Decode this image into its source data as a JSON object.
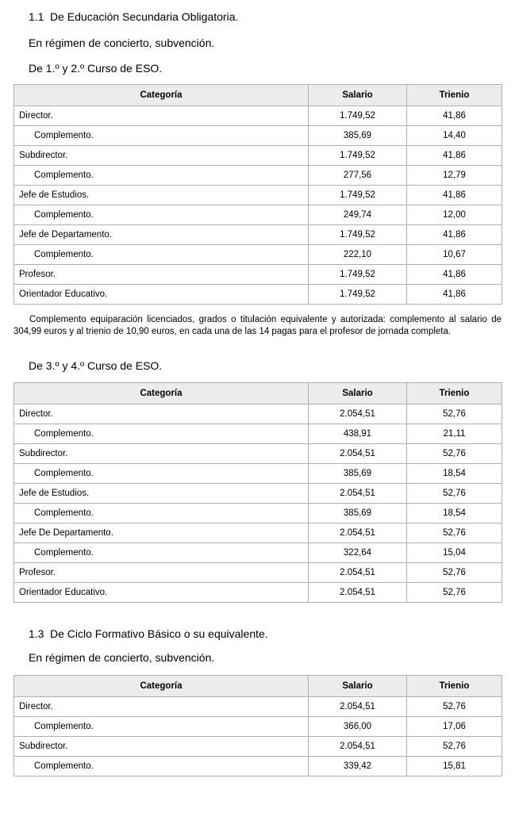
{
  "colors": {
    "page_bg": "#ffffff",
    "text": "#000000",
    "table_header_bg": "#ececec",
    "table_border": "#b0b0b0"
  },
  "section_1_1": {
    "number": "1.1",
    "title": "De Educación Secundaria Obligatoria.",
    "regime": "En régimen de concierto, subvención.",
    "course_1_2": "De 1.º y 2.º Curso de ESO.",
    "note": "Complemento equiparación licenciados, grados o titulación equivalente y autorizada: complemento al salario de 304,99 euros y al trienio de 10,90 euros, en cada una de las 14 pagas para el profesor de jornada completa.",
    "course_3_4": "De 3.º y 4.º Curso de ESO."
  },
  "section_1_3": {
    "number": "1.3",
    "title": "De Ciclo Formativo Básico o su equivalente.",
    "regime": "En régimen de concierto, subvención."
  },
  "tables": [
    {
      "name": "eso_curso_1_2",
      "headers": [
        "Categoría",
        "Salario",
        "Trienio"
      ],
      "rows": [
        {
          "category": "Director.",
          "indent": false,
          "salario": "1.749,52",
          "trienio": "41,86"
        },
        {
          "category": "Complemento.",
          "indent": true,
          "salario": "385,69",
          "trienio": "14,40"
        },
        {
          "category": "Subdirector.",
          "indent": false,
          "salario": "1.749,52",
          "trienio": "41,86"
        },
        {
          "category": "Complemento.",
          "indent": true,
          "salario": "277,56",
          "trienio": "12,79"
        },
        {
          "category": "Jefe de Estudios.",
          "indent": false,
          "salario": "1.749,52",
          "trienio": "41,86"
        },
        {
          "category": "Complemento.",
          "indent": true,
          "salario": "249,74",
          "trienio": "12,00"
        },
        {
          "category": "Jefe de Departamento.",
          "indent": false,
          "salario": "1.749,52",
          "trienio": "41,86"
        },
        {
          "category": "Complemento.",
          "indent": true,
          "salario": "222,10",
          "trienio": "10,67"
        },
        {
          "category": "Profesor.",
          "indent": false,
          "salario": "1.749,52",
          "trienio": "41,86"
        },
        {
          "category": "Orientador Educativo.",
          "indent": false,
          "salario": "1.749,52",
          "trienio": "41,86"
        }
      ]
    },
    {
      "name": "eso_curso_3_4",
      "headers": [
        "Categoría",
        "Salario",
        "Trienio"
      ],
      "rows": [
        {
          "category": "Director.",
          "indent": false,
          "salario": "2.054,51",
          "trienio": "52,76"
        },
        {
          "category": "Complemento.",
          "indent": true,
          "salario": "438,91",
          "trienio": "21,11"
        },
        {
          "category": "Subdirector.",
          "indent": false,
          "salario": "2.054,51",
          "trienio": "52,76"
        },
        {
          "category": "Complemento.",
          "indent": true,
          "salario": "385,69",
          "trienio": "18,54"
        },
        {
          "category": "Jefe de Estudios.",
          "indent": false,
          "salario": "2.054,51",
          "trienio": "52,76"
        },
        {
          "category": "Complemento.",
          "indent": true,
          "salario": "385,69",
          "trienio": "18,54"
        },
        {
          "category": "Jefe De Departamento.",
          "indent": false,
          "salario": "2.054,51",
          "trienio": "52,76"
        },
        {
          "category": "Complemento.",
          "indent": true,
          "salario": "322,64",
          "trienio": "15,04"
        },
        {
          "category": "Profesor.",
          "indent": false,
          "salario": "2.054,51",
          "trienio": "52,76"
        },
        {
          "category": "Orientador Educativo.",
          "indent": false,
          "salario": "2.054,51",
          "trienio": "52,76"
        }
      ]
    },
    {
      "name": "ciclo_formativo_basico",
      "headers": [
        "Categoría",
        "Salario",
        "Trienio"
      ],
      "rows": [
        {
          "category": "Director.",
          "indent": false,
          "salario": "2.054,51",
          "trienio": "52,76"
        },
        {
          "category": "Complemento.",
          "indent": true,
          "salario": "366,00",
          "trienio": "17,06"
        },
        {
          "category": "Subdirector.",
          "indent": false,
          "salario": "2.054,51",
          "trienio": "52,76"
        },
        {
          "category": "Complemento.",
          "indent": true,
          "salario": "339,42",
          "trienio": "15,81"
        }
      ]
    }
  ]
}
